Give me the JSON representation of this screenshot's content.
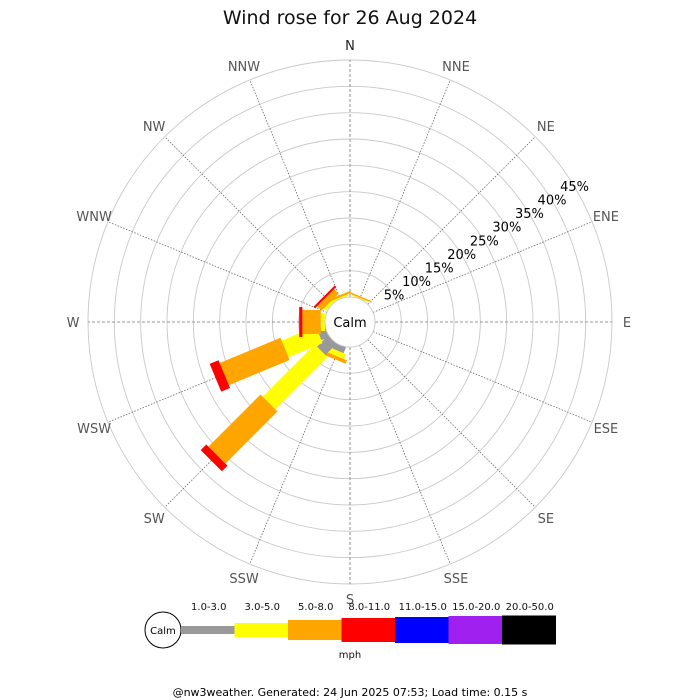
{
  "chart_data": {
    "type": "windrose",
    "title": "Wind rose for 26 Aug 2024",
    "directions": [
      "N",
      "NNE",
      "NE",
      "ENE",
      "E",
      "ESE",
      "SE",
      "SSE",
      "S",
      "SSW",
      "SW",
      "WSW",
      "W",
      "WNW",
      "NW",
      "NNW"
    ],
    "radial_ticks": [
      "5%",
      "10%",
      "15%",
      "20%",
      "25%",
      "30%",
      "35%",
      "40%",
      "45%"
    ],
    "radial_max": 45,
    "calm_label": "Calm",
    "unit": "mph",
    "speed_bins": [
      {
        "label": "1.0-3.0",
        "color": "#999999"
      },
      {
        "label": "3.0-5.0",
        "color": "#ffff00"
      },
      {
        "label": "5.0-8.0",
        "color": "#ffa500"
      },
      {
        "label": "8.0-11.0",
        "color": "#ff0000"
      },
      {
        "label": "11.0-15.0",
        "color": "#0000ff"
      },
      {
        "label": "15.0-20.0",
        "color": "#a020f0"
      },
      {
        "label": "20.0-50.0",
        "color": "#000000"
      }
    ],
    "series": [
      {
        "direction": "NNE",
        "values": [
          0,
          0.2,
          0.3,
          0,
          0,
          0,
          0
        ]
      },
      {
        "direction": "SSW",
        "values": [
          1.2,
          1.0,
          0.7,
          0,
          0,
          0,
          0
        ]
      },
      {
        "direction": "SW",
        "values": [
          3.0,
          14.0,
          14.0,
          1.5,
          0,
          0,
          0
        ]
      },
      {
        "direction": "WSW",
        "values": [
          1.6,
          7.0,
          12.5,
          1.8,
          0,
          0,
          0
        ]
      },
      {
        "direction": "W",
        "values": [
          0,
          0.8,
          3.5,
          0.6,
          0,
          0,
          0
        ]
      },
      {
        "direction": "NW",
        "values": [
          0,
          0.6,
          1.2,
          0.4,
          0,
          0,
          0
        ]
      },
      {
        "direction": "NNW",
        "values": [
          0,
          0.3,
          0.4,
          0,
          0,
          0,
          0
        ]
      }
    ]
  },
  "footer": "@nw3weather. Generated: 24 Jun 2025 07:53; Load time: 0.15 s"
}
